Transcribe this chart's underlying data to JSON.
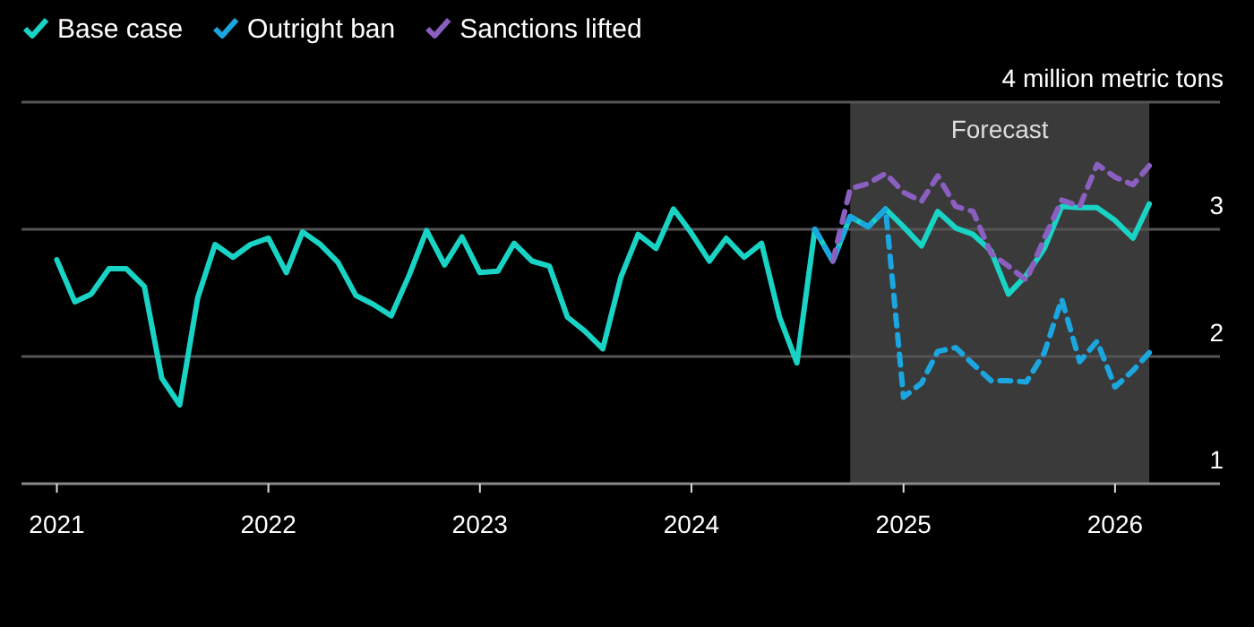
{
  "chart_data": {
    "type": "line",
    "xlim": [
      "2020-11",
      "2026-07"
    ],
    "xticks": [
      {
        "value": "2021-01",
        "label": "2021"
      },
      {
        "value": "2022-01",
        "label": "2022"
      },
      {
        "value": "2023-01",
        "label": "2023"
      },
      {
        "value": "2024-01",
        "label": "2024"
      },
      {
        "value": "2025-01",
        "label": "2025"
      },
      {
        "value": "2026-01",
        "label": "2026"
      }
    ],
    "ylim": [
      1,
      4
    ],
    "yticks": [
      1,
      2,
      3,
      {
        "value": 4,
        "label": "4 million metric tons"
      }
    ],
    "grid": "y",
    "legend": "top left",
    "bands": [
      {
        "axis": "x",
        "from": "2024-10",
        "to": "2026-03",
        "label": "Forecast",
        "color": "#3a3a3a"
      }
    ],
    "series": [
      {
        "name": "Base case",
        "color": "#19d3c5",
        "line_style": "solid",
        "x": [
          "2021-01",
          "2021-02",
          "2021-03",
          "2021-04",
          "2021-05",
          "2021-06",
          "2021-07",
          "2021-08",
          "2021-09",
          "2021-10",
          "2021-11",
          "2021-12",
          "2022-01",
          "2022-02",
          "2022-03",
          "2022-04",
          "2022-05",
          "2022-06",
          "2022-07",
          "2022-08",
          "2022-09",
          "2022-10",
          "2022-11",
          "2022-12",
          "2023-01",
          "2023-02",
          "2023-03",
          "2023-04",
          "2023-05",
          "2023-06",
          "2023-07",
          "2023-08",
          "2023-09",
          "2023-10",
          "2023-11",
          "2023-12",
          "2024-01",
          "2024-02",
          "2024-03",
          "2024-04",
          "2024-05",
          "2024-06",
          "2024-07",
          "2024-08",
          "2024-09",
          "2024-10",
          "2024-11",
          "2024-12",
          "2025-01",
          "2025-02",
          "2025-03",
          "2025-04",
          "2025-05",
          "2025-06",
          "2025-07",
          "2025-08",
          "2025-09",
          "2025-10",
          "2025-11",
          "2025-12",
          "2026-01",
          "2026-02",
          "2026-03"
        ],
        "values": [
          2.76,
          2.43,
          2.49,
          2.69,
          2.69,
          2.55,
          1.83,
          1.62,
          2.46,
          2.88,
          2.78,
          2.88,
          2.93,
          2.66,
          2.98,
          2.88,
          2.74,
          2.48,
          2.41,
          2.32,
          2.64,
          2.99,
          2.72,
          2.94,
          2.66,
          2.67,
          2.89,
          2.75,
          2.71,
          2.31,
          2.2,
          2.06,
          2.62,
          2.96,
          2.85,
          3.16,
          2.97,
          2.75,
          2.93,
          2.78,
          2.89,
          2.31,
          1.95,
          3.0,
          2.75,
          3.1,
          3.02,
          3.16,
          3.02,
          2.87,
          3.14,
          3.01,
          2.96,
          2.83,
          2.49,
          2.64,
          2.85,
          3.18,
          3.17,
          3.17,
          3.07,
          2.93,
          3.2
        ]
      },
      {
        "name": "Outright ban",
        "color": "#1ba6e0",
        "line_style": "dashed",
        "x": [
          "2024-08",
          "2024-09",
          "2024-10",
          "2024-11",
          "2024-12",
          "2025-01",
          "2025-02",
          "2025-03",
          "2025-04",
          "2025-05",
          "2025-06",
          "2025-07",
          "2025-08",
          "2025-09",
          "2025-10",
          "2025-11",
          "2025-12",
          "2026-01",
          "2026-02",
          "2026-03"
        ],
        "values": [
          3.0,
          2.75,
          3.1,
          3.02,
          3.16,
          1.68,
          1.79,
          2.04,
          2.07,
          1.94,
          1.81,
          1.81,
          1.8,
          2.03,
          2.45,
          1.96,
          2.12,
          1.76,
          1.89,
          2.03
        ]
      },
      {
        "name": "Sanctions lifted",
        "color": "#8a5fc0",
        "line_style": "dashed",
        "x": [
          "2024-09",
          "2024-10",
          "2024-11",
          "2024-12",
          "2025-01",
          "2025-02",
          "2025-03",
          "2025-04",
          "2025-05",
          "2025-06",
          "2025-07",
          "2025-08",
          "2025-09",
          "2025-10",
          "2025-11",
          "2025-12",
          "2026-01",
          "2026-02",
          "2026-03"
        ],
        "values": [
          2.75,
          3.32,
          3.36,
          3.44,
          3.29,
          3.22,
          3.42,
          3.18,
          3.14,
          2.81,
          2.71,
          2.6,
          2.93,
          3.23,
          3.18,
          3.51,
          3.41,
          3.35,
          3.5
        ]
      }
    ]
  }
}
